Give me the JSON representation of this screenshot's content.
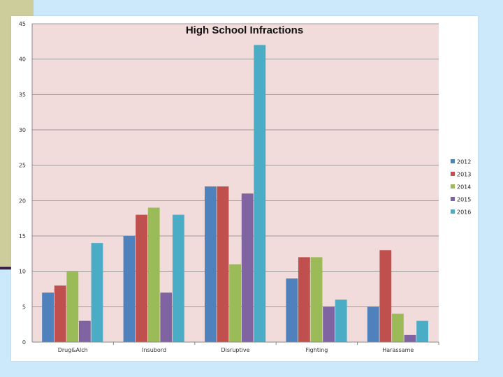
{
  "chart_data": {
    "type": "bar",
    "title": "High School Infractions",
    "xlabel": "",
    "ylabel": "",
    "categories": [
      "Drug&Alch",
      "Insubord",
      "Disruptive",
      "Fighting",
      "Harassame"
    ],
    "series": [
      {
        "name": "2012",
        "color": "#4f81bd",
        "values": [
          7,
          15,
          22,
          9,
          5
        ]
      },
      {
        "name": "2013",
        "color": "#c0504d",
        "values": [
          8,
          18,
          22,
          12,
          13
        ]
      },
      {
        "name": "2014",
        "color": "#9bbb59",
        "values": [
          10,
          19,
          11,
          12,
          4
        ]
      },
      {
        "name": "2015",
        "color": "#8064a2",
        "values": [
          3,
          7,
          21,
          5,
          1
        ]
      },
      {
        "name": "2016",
        "color": "#4bacc6",
        "values": [
          14,
          18,
          42,
          6,
          3
        ]
      }
    ],
    "ylim": [
      0,
      45
    ],
    "yticks": [
      0,
      5,
      10,
      15,
      20,
      25,
      30,
      35,
      40,
      45
    ],
    "grid": true,
    "legend_position": "right",
    "plot_background": "#f2dcdb"
  }
}
